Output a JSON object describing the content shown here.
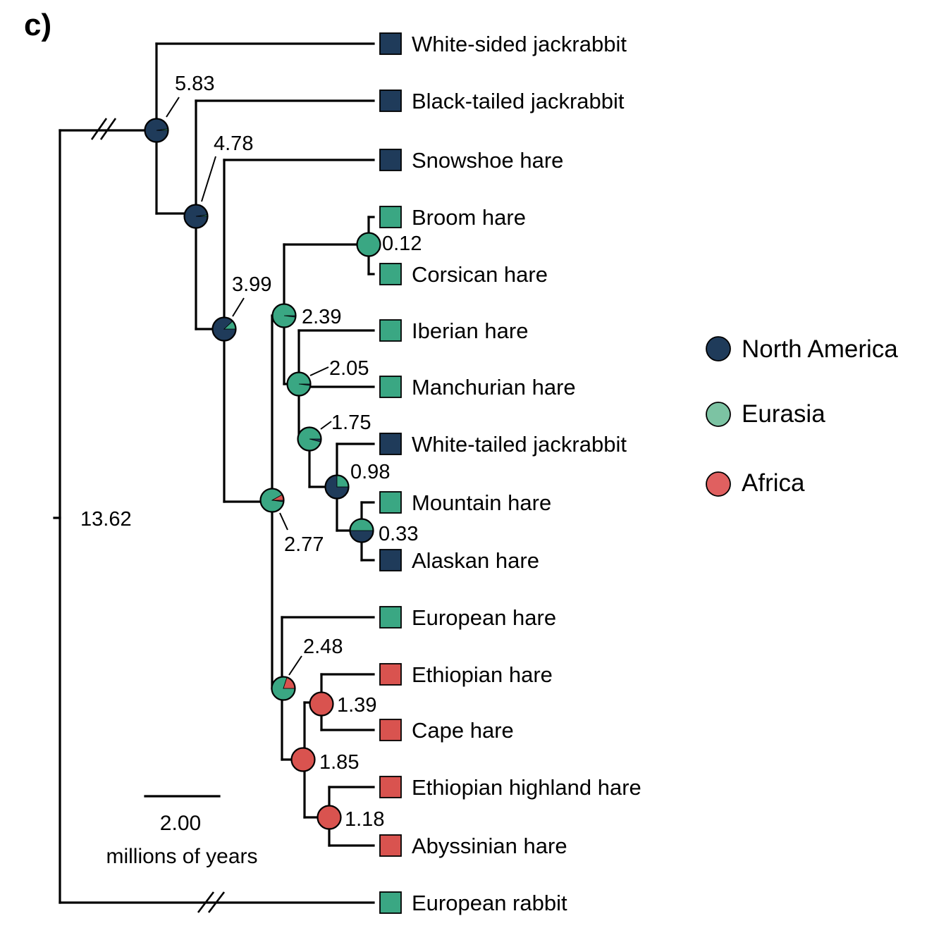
{
  "panel_label": "c)",
  "colors": {
    "north_america": "#1f3b5a",
    "eurasia": "#3aa783",
    "africa": "#d9534f",
    "legend_eurasia": "#7cc3a3",
    "legend_africa": "#e06060"
  },
  "legend": [
    {
      "key": "north_america",
      "label": "North America"
    },
    {
      "key": "eurasia",
      "label": "Eurasia"
    },
    {
      "key": "africa",
      "label": "Africa"
    }
  ],
  "taxa": [
    {
      "name": "White-sided jackrabbit",
      "region": "north_america"
    },
    {
      "name": "Black-tailed jackrabbit",
      "region": "north_america"
    },
    {
      "name": "Snowshoe hare",
      "region": "north_america"
    },
    {
      "name": "Broom hare",
      "region": "eurasia"
    },
    {
      "name": "Corsican hare",
      "region": "eurasia"
    },
    {
      "name": "Iberian hare",
      "region": "eurasia"
    },
    {
      "name": "Manchurian hare",
      "region": "eurasia"
    },
    {
      "name": "White-tailed jackrabbit",
      "region": "north_america"
    },
    {
      "name": "Mountain hare",
      "region": "eurasia"
    },
    {
      "name": "Alaskan hare",
      "region": "north_america"
    },
    {
      "name": "European hare",
      "region": "eurasia"
    },
    {
      "name": "Ethiopian hare",
      "region": "africa"
    },
    {
      "name": "Cape hare",
      "region": "africa"
    },
    {
      "name": "Ethiopian highland hare",
      "region": "africa"
    },
    {
      "name": "Abyssinian hare",
      "region": "africa"
    },
    {
      "name": "European rabbit",
      "region": "eurasia"
    }
  ],
  "node_ages": [
    "13.62",
    "5.83",
    "4.78",
    "3.99",
    "2.77",
    "2.39",
    "0.12",
    "2.05",
    "1.75",
    "0.98",
    "0.33",
    "2.48",
    "1.85",
    "1.39",
    "1.18"
  ],
  "ancestral_states": [
    {
      "age": "5.83",
      "north_america": 0.98,
      "eurasia": 0.02,
      "africa": 0.0
    },
    {
      "age": "4.78",
      "north_america": 0.98,
      "eurasia": 0.02,
      "africa": 0.0
    },
    {
      "age": "3.99",
      "north_america": 0.88,
      "eurasia": 0.12,
      "africa": 0.0
    },
    {
      "age": "2.77",
      "north_america": 0.02,
      "eurasia": 0.9,
      "africa": 0.08
    },
    {
      "age": "2.39",
      "north_america": 0.02,
      "eurasia": 0.98,
      "africa": 0.0
    },
    {
      "age": "0.12",
      "north_america": 0.0,
      "eurasia": 1.0,
      "africa": 0.0
    },
    {
      "age": "2.05",
      "north_america": 0.02,
      "eurasia": 0.98,
      "africa": 0.0
    },
    {
      "age": "1.75",
      "north_america": 0.04,
      "eurasia": 0.96,
      "africa": 0.0
    },
    {
      "age": "0.98",
      "north_america": 0.75,
      "eurasia": 0.25,
      "africa": 0.0
    },
    {
      "age": "0.33",
      "north_america": 0.5,
      "eurasia": 0.5,
      "africa": 0.0
    },
    {
      "age": "2.48",
      "north_america": 0.0,
      "eurasia": 0.8,
      "africa": 0.2
    },
    {
      "age": "1.85",
      "north_america": 0.0,
      "eurasia": 0.0,
      "africa": 1.0
    },
    {
      "age": "1.39",
      "north_america": 0.0,
      "eurasia": 0.0,
      "africa": 1.0
    },
    {
      "age": "1.18",
      "north_america": 0.0,
      "eurasia": 0.0,
      "africa": 1.0
    }
  ],
  "scale_bar": {
    "value": "2.00",
    "unit": "millions of years"
  }
}
